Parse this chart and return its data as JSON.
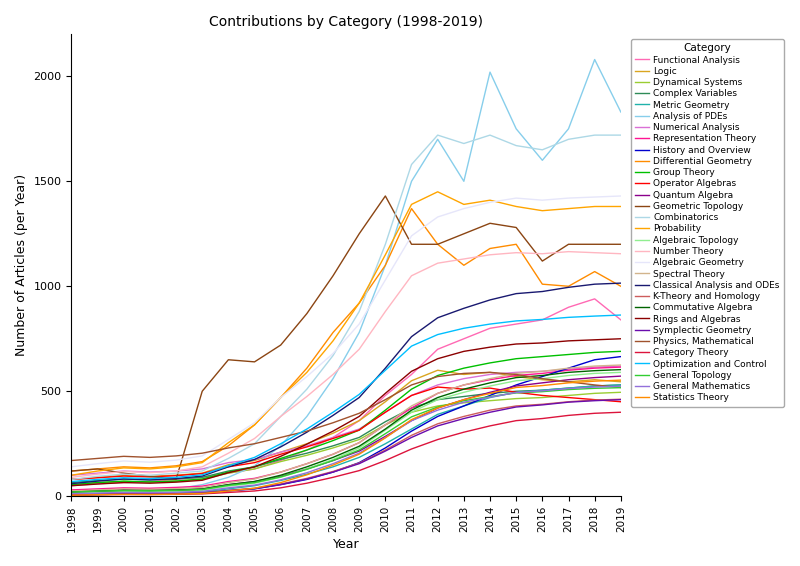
{
  "title": "Contributions by Category (1998-2019)",
  "xlabel": "Year",
  "ylabel": "Number of Articles (per Year)",
  "years": [
    1998,
    1999,
    2000,
    2001,
    2002,
    2003,
    2004,
    2005,
    2006,
    2007,
    2008,
    2009,
    2010,
    2011,
    2012,
    2013,
    2014,
    2015,
    2016,
    2017,
    2018,
    2019
  ],
  "series": {
    "Functional Analysis": [
      50,
      60,
      65,
      70,
      80,
      90,
      110,
      130,
      170,
      220,
      280,
      360,
      480,
      580,
      700,
      750,
      800,
      820,
      840,
      900,
      940,
      840
    ],
    "Logic": [
      80,
      90,
      100,
      95,
      100,
      110,
      150,
      170,
      210,
      250,
      300,
      360,
      450,
      550,
      600,
      580,
      590,
      570,
      555,
      545,
      555,
      545
    ],
    "Dynamical Systems": [
      55,
      65,
      70,
      68,
      72,
      80,
      110,
      130,
      165,
      195,
      230,
      270,
      340,
      400,
      430,
      445,
      455,
      465,
      470,
      480,
      490,
      495
    ],
    "Complex Variables": [
      65,
      75,
      82,
      78,
      82,
      90,
      120,
      140,
      175,
      205,
      240,
      280,
      355,
      420,
      460,
      475,
      490,
      500,
      505,
      515,
      525,
      530
    ],
    "Metric Geometry": [
      5,
      8,
      10,
      12,
      15,
      20,
      35,
      50,
      75,
      105,
      140,
      185,
      250,
      320,
      390,
      430,
      470,
      495,
      505,
      515,
      525,
      530
    ],
    "Analysis of PDEs": [
      10,
      15,
      20,
      25,
      35,
      55,
      90,
      145,
      240,
      380,
      560,
      780,
      1100,
      1500,
      1700,
      1500,
      2020,
      1750,
      1600,
      1750,
      2080,
      1830
    ],
    "Numerical Analysis": [
      100,
      110,
      120,
      115,
      120,
      130,
      160,
      175,
      210,
      240,
      280,
      320,
      400,
      480,
      530,
      560,
      580,
      590,
      595,
      605,
      615,
      620
    ],
    "Representation Theory": [
      30,
      35,
      40,
      38,
      42,
      48,
      70,
      85,
      115,
      155,
      200,
      255,
      340,
      420,
      490,
      530,
      555,
      575,
      585,
      600,
      610,
      615
    ],
    "History and Overview": [
      5,
      8,
      10,
      10,
      12,
      15,
      25,
      35,
      55,
      80,
      115,
      160,
      230,
      310,
      380,
      430,
      480,
      530,
      570,
      610,
      650,
      665
    ],
    "Differential Geometry": [
      120,
      130,
      140,
      135,
      145,
      165,
      240,
      340,
      470,
      610,
      780,
      920,
      1100,
      1370,
      1200,
      1100,
      1180,
      1200,
      1010,
      1000,
      1070,
      1000
    ],
    "Group Theory": [
      55,
      65,
      72,
      68,
      72,
      82,
      115,
      140,
      180,
      220,
      265,
      315,
      410,
      510,
      575,
      610,
      635,
      655,
      665,
      675,
      685,
      690
    ],
    "Operator Algebras": [
      80,
      88,
      96,
      92,
      98,
      108,
      140,
      160,
      200,
      235,
      275,
      315,
      400,
      480,
      520,
      510,
      515,
      495,
      480,
      470,
      460,
      450
    ],
    "Quantum Algebra": [
      20,
      25,
      30,
      28,
      30,
      35,
      55,
      70,
      95,
      130,
      170,
      215,
      285,
      360,
      420,
      460,
      495,
      525,
      540,
      555,
      565,
      572
    ],
    "Geometric Topology": [
      120,
      130,
      110,
      95,
      80,
      500,
      650,
      640,
      720,
      870,
      1050,
      1250,
      1430,
      1200,
      1200,
      1250,
      1300,
      1280,
      1120,
      1200,
      1200,
      1200
    ],
    "Combinatorics": [
      80,
      95,
      105,
      100,
      110,
      120,
      180,
      250,
      380,
      510,
      670,
      880,
      1200,
      1580,
      1720,
      1680,
      1720,
      1670,
      1650,
      1700,
      1720,
      1720
    ],
    "Probability": [
      100,
      120,
      135,
      130,
      140,
      160,
      255,
      340,
      470,
      590,
      740,
      920,
      1150,
      1390,
      1450,
      1390,
      1410,
      1380,
      1360,
      1370,
      1380,
      1380
    ],
    "Algebraic Topology": [
      15,
      18,
      22,
      21,
      23,
      28,
      48,
      62,
      90,
      130,
      175,
      230,
      315,
      400,
      460,
      495,
      525,
      550,
      560,
      575,
      585,
      590
    ],
    "Number Theory": [
      90,
      105,
      118,
      112,
      120,
      140,
      205,
      275,
      380,
      475,
      580,
      700,
      880,
      1050,
      1110,
      1130,
      1150,
      1160,
      1155,
      1165,
      1160,
      1155
    ],
    "Algebraic Geometry": [
      140,
      155,
      168,
      162,
      172,
      192,
      270,
      350,
      470,
      570,
      680,
      820,
      1030,
      1240,
      1330,
      1370,
      1400,
      1420,
      1410,
      1420,
      1425,
      1430
    ],
    "Spectral Theory": [
      25,
      30,
      35,
      33,
      36,
      42,
      65,
      82,
      115,
      155,
      200,
      255,
      340,
      430,
      490,
      530,
      560,
      585,
      595,
      610,
      620,
      625
    ],
    "Classical Analysis and ODEs": [
      60,
      72,
      82,
      78,
      84,
      96,
      140,
      175,
      235,
      305,
      385,
      470,
      610,
      760,
      850,
      895,
      935,
      965,
      975,
      995,
      1010,
      1015
    ],
    "K-Theory and Homology": [
      8,
      10,
      12,
      11,
      13,
      16,
      28,
      38,
      58,
      85,
      118,
      158,
      220,
      290,
      345,
      380,
      410,
      430,
      438,
      450,
      458,
      462
    ],
    "Commutative Algebra": [
      20,
      24,
      28,
      27,
      29,
      34,
      55,
      70,
      100,
      140,
      185,
      238,
      320,
      410,
      470,
      510,
      540,
      565,
      575,
      590,
      598,
      603
    ],
    "Rings and Algebras": [
      50,
      58,
      65,
      62,
      67,
      76,
      112,
      140,
      190,
      248,
      310,
      380,
      490,
      595,
      655,
      690,
      710,
      725,
      730,
      740,
      745,
      750
    ],
    "Symplectic Geometry": [
      8,
      10,
      12,
      11,
      12,
      15,
      27,
      36,
      56,
      82,
      115,
      155,
      215,
      280,
      335,
      370,
      400,
      425,
      435,
      448,
      455,
      460
    ],
    "Physics, Mathematical": [
      170,
      180,
      190,
      185,
      192,
      205,
      230,
      250,
      280,
      310,
      350,
      395,
      460,
      530,
      570,
      585,
      590,
      580,
      560,
      545,
      530,
      518
    ],
    "Category Theory": [
      5,
      7,
      8,
      8,
      9,
      11,
      18,
      25,
      40,
      62,
      90,
      122,
      170,
      225,
      270,
      305,
      335,
      360,
      370,
      385,
      395,
      400
    ],
    "Optimization and Control": [
      70,
      80,
      88,
      84,
      90,
      102,
      145,
      185,
      250,
      320,
      400,
      485,
      600,
      715,
      770,
      800,
      820,
      835,
      842,
      852,
      858,
      863
    ],
    "General Topology": [
      20,
      24,
      27,
      26,
      28,
      32,
      52,
      65,
      92,
      128,
      170,
      220,
      298,
      378,
      425,
      455,
      475,
      492,
      498,
      508,
      514,
      517
    ],
    "General Mathematics": [
      12,
      15,
      18,
      17,
      19,
      23,
      40,
      53,
      78,
      112,
      155,
      205,
      280,
      360,
      410,
      448,
      472,
      494,
      502,
      513,
      520,
      524
    ],
    "Statistics Theory": [
      5,
      7,
      9,
      8,
      10,
      13,
      25,
      38,
      65,
      102,
      148,
      200,
      278,
      365,
      420,
      460,
      490,
      518,
      527,
      540,
      548,
      553
    ]
  },
  "colors": {
    "Functional Analysis": "#FF69B4",
    "Logic": "#DAA520",
    "Dynamical Systems": "#9ACD32",
    "Complex Variables": "#2E8B57",
    "Metric Geometry": "#20B2AA",
    "Analysis of PDEs": "#87CEEB",
    "Numerical Analysis": "#DA70D6",
    "Representation Theory": "#FF1493",
    "History and Overview": "#0000CD",
    "Differential Geometry": "#FF8C00",
    "Group Theory": "#00C000",
    "Operator Algebras": "#FF0000",
    "Quantum Algebra": "#8B008B",
    "Geometric Topology": "#8B4513",
    "Combinatorics": "#ADD8E6",
    "Probability": "#FFA500",
    "Algebraic Topology": "#90EE90",
    "Number Theory": "#FFB6C1",
    "Algebraic Geometry": "#E6E6FA",
    "Spectral Theory": "#D2B48C",
    "Classical Analysis and ODEs": "#191970",
    "K-Theory and Homology": "#CD5C5C",
    "Commutative Algebra": "#006400",
    "Rings and Algebras": "#8B0000",
    "Symplectic Geometry": "#6A0DAD",
    "Physics, Mathematical": "#A0522D",
    "Category Theory": "#DC143C",
    "Optimization and Control": "#00BFFF",
    "General Topology": "#32CD32",
    "General Mathematics": "#9370DB",
    "Statistics Theory": "#FF8C00"
  },
  "figsize": [
    8.0,
    5.66
  ],
  "dpi": 100,
  "ylim": [
    0,
    2200
  ],
  "yticks": [
    0,
    500,
    1000,
    1500,
    2000
  ]
}
